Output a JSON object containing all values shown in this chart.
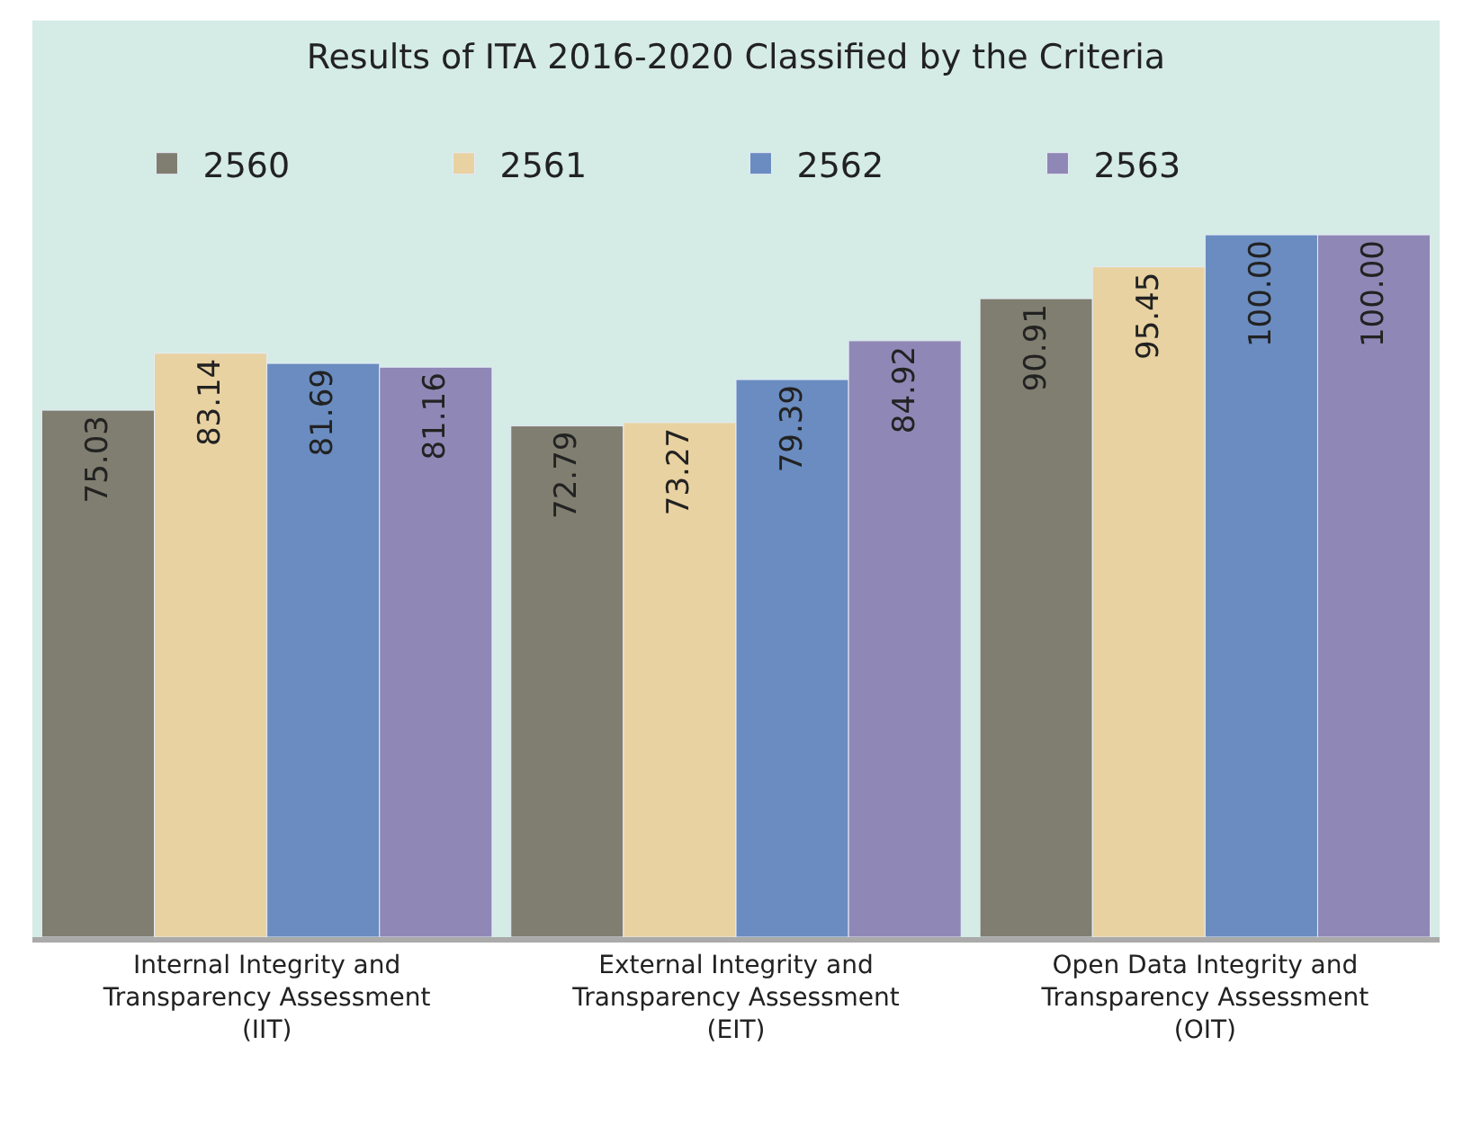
{
  "chart_data": {
    "type": "bar",
    "title": "Results of ITA 2016-2020 Classified by the Criteria",
    "categories": [
      "Internal Integrity and Transparency Assessment (IIT)",
      "External Integrity and Transparency Assessment (EIT)",
      "Open Data Integrity and Transparency Assessment (OIT)"
    ],
    "series": [
      {
        "name": "2560",
        "color": "#7f7e70",
        "values": [
          75.03,
          72.79,
          90.91
        ],
        "value_labels": [
          "75.03",
          "72.79",
          "90.91"
        ]
      },
      {
        "name": "2561",
        "color": "#e9d2a2",
        "values": [
          83.14,
          73.27,
          95.45
        ],
        "value_labels": [
          "83.14",
          "73.27",
          "95.45"
        ]
      },
      {
        "name": "2562",
        "color": "#6a8cc0",
        "values": [
          81.69,
          79.39,
          100.0
        ],
        "value_labels": [
          "81.69",
          "79.39",
          "100.00"
        ]
      },
      {
        "name": "2563",
        "color": "#8f88b6",
        "values": [
          81.16,
          84.92,
          100.0
        ],
        "value_labels": [
          "81.16",
          "84.92",
          "100.00"
        ]
      }
    ],
    "tick_labels": "x",
    "grid": false,
    "legend": "top left"
  }
}
